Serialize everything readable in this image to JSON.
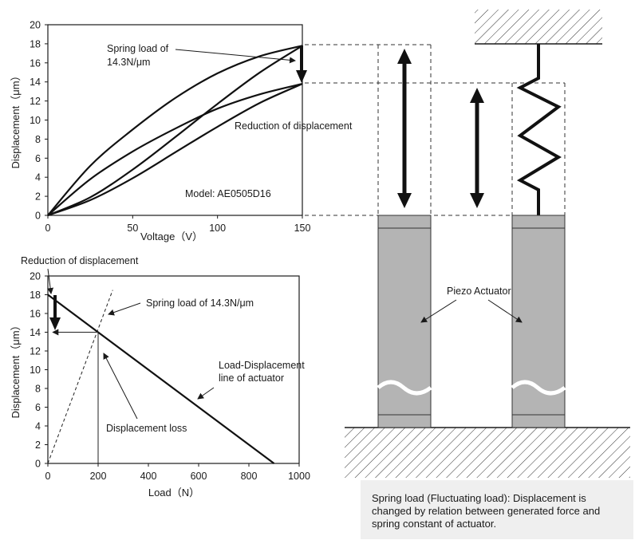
{
  "top_chart": {
    "ylabel": "Displacement（μm）",
    "xlabel": "Voltage（V）",
    "x_ticks": [
      "0",
      "50",
      "100",
      "150"
    ],
    "y_ticks": [
      "0",
      "2",
      "4",
      "6",
      "8",
      "10",
      "12",
      "14",
      "16",
      "18",
      "20"
    ],
    "annotation_spring_line1": "Spring load of",
    "annotation_spring_line2": "14.3N/μm",
    "annotation_reduction": "Reduction of displacement",
    "model_label": "Model: AE0505D16"
  },
  "bottom_chart": {
    "ylabel": "Displacement（μm）",
    "xlabel": "Load（N）",
    "x_ticks": [
      "0",
      "200",
      "400",
      "600",
      "800",
      "1000"
    ],
    "y_ticks": [
      "0",
      "2",
      "4",
      "6",
      "8",
      "10",
      "12",
      "14",
      "16",
      "18",
      "20"
    ],
    "annotation_reduction": "Reduction of displacement",
    "annotation_spring": "Spring load of 14.3N/μm",
    "annotation_line1": "Load-Displacement",
    "annotation_line2": "line of actuator",
    "annotation_loss": "Displacement loss"
  },
  "diagram": {
    "piezo_label": "Piezo Actuator"
  },
  "caption": "Spring load (Fluctuating load): Displacement is changed by relation between generated force and spring constant of actuator.",
  "chart_data": [
    {
      "type": "line",
      "xlabel": "Voltage（V）",
      "ylabel": "Displacement（μm）",
      "xlim": [
        0,
        150
      ],
      "ylim": [
        0,
        20
      ],
      "series": [
        {
          "x": [
            0,
            25,
            50,
            75,
            100,
            125,
            150
          ],
          "y": [
            0,
            5.2,
            9.0,
            12.3,
            14.9,
            16.7,
            17.8
          ]
        },
        {
          "x": [
            0,
            25,
            50,
            75,
            100,
            125,
            150
          ],
          "y": [
            0,
            1.9,
            4.8,
            8.2,
            11.7,
            15.0,
            17.8
          ]
        },
        {
          "x": [
            0,
            25,
            50,
            75,
            100,
            125,
            150
          ],
          "y": [
            0,
            3.8,
            6.7,
            9.1,
            11.2,
            12.7,
            13.8
          ]
        },
        {
          "x": [
            0,
            25,
            50,
            75,
            100,
            125,
            150
          ],
          "y": [
            0,
            1.6,
            3.9,
            6.6,
            9.3,
            11.8,
            13.8
          ]
        }
      ]
    },
    {
      "type": "line",
      "xlabel": "Load（N）",
      "ylabel": "Displacement（μm）",
      "xlim": [
        0,
        1000
      ],
      "ylim": [
        0,
        20
      ],
      "series": [
        {
          "x": [
            0,
            900
          ],
          "y": [
            18,
            0
          ]
        },
        {
          "x": [
            0,
            258
          ],
          "y": [
            0,
            18.5
          ]
        },
        {
          "x": [
            200,
            200
          ],
          "y": [
            0,
            14
          ]
        },
        {
          "x": [
            20,
            200
          ],
          "y": [
            14,
            14
          ]
        }
      ]
    }
  ]
}
